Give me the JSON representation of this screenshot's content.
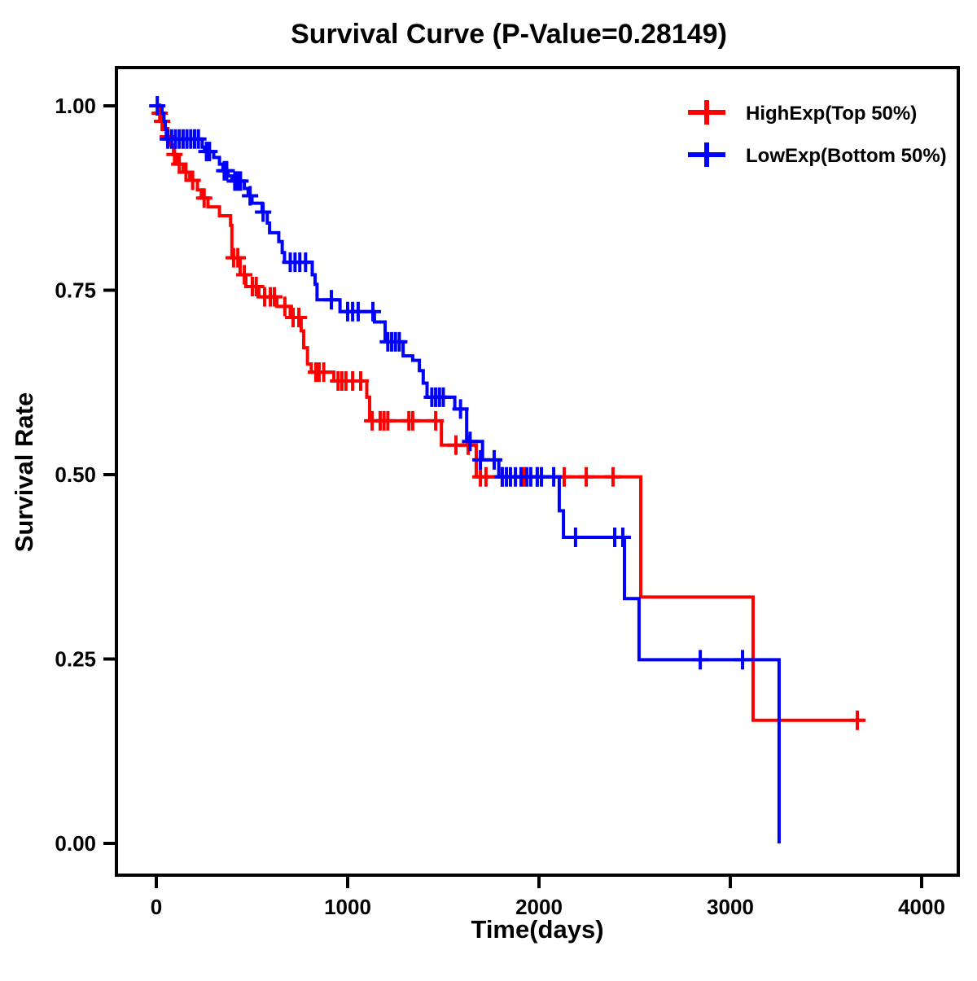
{
  "chart_data": {
    "type": "line",
    "subtype": "kaplan_meier_survival_step",
    "title": "Survival Curve (P-Value=0.28149)",
    "p_value": "0.28149",
    "grid": "off",
    "background": "#ffffff",
    "x_axis": {
      "label": "Time(days)",
      "range": [
        0,
        4000
      ],
      "ticks": [
        {
          "value": 0,
          "label": "0"
        },
        {
          "value": 1000,
          "label": "1000"
        },
        {
          "value": 2000,
          "label": "2000"
        },
        {
          "value": 3000,
          "label": "3000"
        },
        {
          "value": 4000,
          "label": "4000"
        }
      ]
    },
    "y_axis": {
      "label": "Survival Rate",
      "range": [
        0.0,
        1.0
      ],
      "ticks": [
        {
          "value": 1.0,
          "label": "1.00"
        },
        {
          "value": 0.75,
          "label": "0.75"
        },
        {
          "value": 0.5,
          "label": "0.50"
        },
        {
          "value": 0.25,
          "label": "0.25"
        },
        {
          "value": 0.0,
          "label": "0.00"
        }
      ]
    },
    "legend": {
      "position": "top-right",
      "entries": [
        {
          "id": "highexp",
          "label": "HighExp(Top 50%)",
          "color": "#FF0000",
          "marker": "plus"
        },
        {
          "id": "lowexp",
          "label": "LowExp(Bottom 50%)",
          "color": "#0000FF",
          "marker": "plus"
        }
      ]
    },
    "series": [
      {
        "id": "highexp",
        "name": "HighExp(Top 50%)",
        "color": "#FF0000",
        "start_rate": 1.0,
        "end_time": 3700,
        "steps": [
          [
            15,
            0.99
          ],
          [
            25,
            0.979
          ],
          [
            40,
            0.968
          ],
          [
            55,
            0.958
          ],
          [
            70,
            0.947
          ],
          [
            90,
            0.934
          ],
          [
            105,
            0.921
          ],
          [
            140,
            0.91
          ],
          [
            175,
            0.899
          ],
          [
            215,
            0.886
          ],
          [
            235,
            0.875
          ],
          [
            270,
            0.863
          ],
          [
            330,
            0.851
          ],
          [
            388,
            0.838
          ],
          [
            395,
            0.794
          ],
          [
            438,
            0.771
          ],
          [
            468,
            0.755
          ],
          [
            536,
            0.741
          ],
          [
            630,
            0.728
          ],
          [
            700,
            0.713
          ],
          [
            757,
            0.695
          ],
          [
            770,
            0.672
          ],
          [
            790,
            0.65
          ],
          [
            810,
            0.639
          ],
          [
            928,
            0.627
          ],
          [
            1100,
            0.605
          ],
          [
            1115,
            0.573
          ],
          [
            1490,
            0.54
          ],
          [
            1672,
            0.497
          ],
          [
            2532,
            0.334
          ],
          [
            3119,
            0.167
          ]
        ],
        "censors": [
          [
            18,
            0.99
          ],
          [
            30,
            0.979
          ],
          [
            60,
            0.958
          ],
          [
            95,
            0.934
          ],
          [
            120,
            0.921
          ],
          [
            155,
            0.91
          ],
          [
            190,
            0.899
          ],
          [
            250,
            0.875
          ],
          [
            404,
            0.794
          ],
          [
            426,
            0.794
          ],
          [
            460,
            0.771
          ],
          [
            502,
            0.755
          ],
          [
            522,
            0.755
          ],
          [
            566,
            0.741
          ],
          [
            596,
            0.741
          ],
          [
            617,
            0.741
          ],
          [
            672,
            0.728
          ],
          [
            715,
            0.713
          ],
          [
            745,
            0.713
          ],
          [
            834,
            0.639
          ],
          [
            851,
            0.639
          ],
          [
            875,
            0.639
          ],
          [
            950,
            0.627
          ],
          [
            970,
            0.627
          ],
          [
            991,
            0.627
          ],
          [
            1026,
            0.627
          ],
          [
            1068,
            0.627
          ],
          [
            1128,
            0.573
          ],
          [
            1170,
            0.573
          ],
          [
            1190,
            0.573
          ],
          [
            1210,
            0.573
          ],
          [
            1320,
            0.573
          ],
          [
            1340,
            0.573
          ],
          [
            1460,
            0.573
          ],
          [
            1566,
            0.54
          ],
          [
            1630,
            0.54
          ],
          [
            1694,
            0.497
          ],
          [
            1723,
            0.497
          ],
          [
            1808,
            0.497
          ],
          [
            1919,
            0.497
          ],
          [
            1991,
            0.497
          ],
          [
            2132,
            0.497
          ],
          [
            2247,
            0.497
          ],
          [
            2387,
            0.497
          ],
          [
            3664,
            0.167
          ]
        ]
      },
      {
        "id": "lowexp",
        "name": "LowExp(Bottom 50%)",
        "color": "#0000FF",
        "start_rate": 1.0,
        "end_time": 3255,
        "steps": [
          [
            30,
            0.99
          ],
          [
            40,
            0.979
          ],
          [
            47,
            0.968
          ],
          [
            52,
            0.955
          ],
          [
            240,
            0.944
          ],
          [
            252,
            0.938
          ],
          [
            300,
            0.93
          ],
          [
            330,
            0.921
          ],
          [
            348,
            0.912
          ],
          [
            375,
            0.905
          ],
          [
            395,
            0.898
          ],
          [
            460,
            0.888
          ],
          [
            480,
            0.878
          ],
          [
            500,
            0.868
          ],
          [
            553,
            0.856
          ],
          [
            580,
            0.841
          ],
          [
            592,
            0.828
          ],
          [
            640,
            0.816
          ],
          [
            658,
            0.801
          ],
          [
            670,
            0.788
          ],
          [
            815,
            0.771
          ],
          [
            830,
            0.758
          ],
          [
            840,
            0.737
          ],
          [
            960,
            0.721
          ],
          [
            1140,
            0.707
          ],
          [
            1196,
            0.68
          ],
          [
            1290,
            0.661
          ],
          [
            1340,
            0.655
          ],
          [
            1375,
            0.641
          ],
          [
            1395,
            0.624
          ],
          [
            1415,
            0.605
          ],
          [
            1560,
            0.589
          ],
          [
            1622,
            0.545
          ],
          [
            1705,
            0.52
          ],
          [
            1790,
            0.497
          ],
          [
            2106,
            0.451
          ],
          [
            2128,
            0.415
          ],
          [
            2447,
            0.332
          ],
          [
            2523,
            0.249
          ],
          [
            3255,
            0.0
          ]
        ],
        "censors": [
          [
            5,
            1.0
          ],
          [
            60,
            0.955
          ],
          [
            80,
            0.955
          ],
          [
            100,
            0.955
          ],
          [
            120,
            0.955
          ],
          [
            140,
            0.955
          ],
          [
            160,
            0.955
          ],
          [
            180,
            0.955
          ],
          [
            200,
            0.955
          ],
          [
            220,
            0.955
          ],
          [
            262,
            0.938
          ],
          [
            278,
            0.938
          ],
          [
            355,
            0.912
          ],
          [
            368,
            0.912
          ],
          [
            410,
            0.898
          ],
          [
            425,
            0.898
          ],
          [
            440,
            0.898
          ],
          [
            490,
            0.878
          ],
          [
            558,
            0.856
          ],
          [
            700,
            0.788
          ],
          [
            725,
            0.788
          ],
          [
            750,
            0.788
          ],
          [
            780,
            0.788
          ],
          [
            915,
            0.737
          ],
          [
            1000,
            0.721
          ],
          [
            1026,
            0.721
          ],
          [
            1055,
            0.721
          ],
          [
            1132,
            0.721
          ],
          [
            1210,
            0.68
          ],
          [
            1230,
            0.68
          ],
          [
            1250,
            0.68
          ],
          [
            1270,
            0.68
          ],
          [
            1440,
            0.605
          ],
          [
            1460,
            0.605
          ],
          [
            1480,
            0.605
          ],
          [
            1500,
            0.605
          ],
          [
            1590,
            0.589
          ],
          [
            1640,
            0.545
          ],
          [
            1694,
            0.52
          ],
          [
            1766,
            0.52
          ],
          [
            1808,
            0.497
          ],
          [
            1830,
            0.497
          ],
          [
            1851,
            0.497
          ],
          [
            1877,
            0.497
          ],
          [
            1906,
            0.497
          ],
          [
            1936,
            0.497
          ],
          [
            1957,
            0.497
          ],
          [
            1991,
            0.497
          ],
          [
            2013,
            0.497
          ],
          [
            2077,
            0.497
          ],
          [
            2191,
            0.415
          ],
          [
            2396,
            0.415
          ],
          [
            2438,
            0.415
          ],
          [
            2843,
            0.249
          ],
          [
            3064,
            0.249
          ]
        ]
      }
    ]
  }
}
